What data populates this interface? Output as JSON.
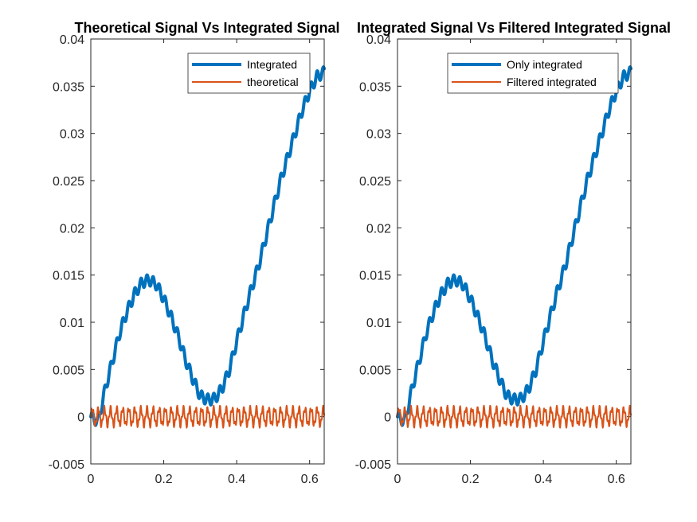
{
  "chart_data": [
    {
      "type": "line",
      "title": "Theoretical Signal Vs Integrated Signal",
      "xlabel": "",
      "ylabel": "",
      "xlim": [
        0,
        0.64
      ],
      "ylim": [
        -0.005,
        0.04
      ],
      "xticks": [
        "0",
        "0.2",
        "0.4",
        "0.6"
      ],
      "yticks": [
        "-0.005",
        "0",
        "0.005",
        "0.01",
        "0.015",
        "0.02",
        "0.025",
        "0.03",
        "0.035",
        "0.04"
      ],
      "legend_position": "top-right",
      "series": [
        {
          "name": "Integrated",
          "color": "#0072BD",
          "x": [
            0,
            0.02,
            0.04,
            0.06,
            0.08,
            0.1,
            0.12,
            0.14,
            0.16,
            0.18,
            0.2,
            0.22,
            0.24,
            0.26,
            0.28,
            0.3,
            0.32,
            0.34,
            0.36,
            0.38,
            0.4,
            0.42,
            0.44,
            0.46,
            0.48,
            0.5,
            0.52,
            0.54,
            0.56,
            0.58,
            0.6,
            0.62,
            0.64
          ],
          "values": [
            0,
            -0.0005,
            0.003,
            0.006,
            0.009,
            0.0112,
            0.013,
            0.0142,
            0.0145,
            0.014,
            0.0125,
            0.0106,
            0.0085,
            0.006,
            0.004,
            0.0022,
            0.0018,
            0.0019,
            0.003,
            0.005,
            0.008,
            0.0108,
            0.0135,
            0.016,
            0.019,
            0.022,
            0.025,
            0.0275,
            0.03,
            0.0325,
            0.0345,
            0.036,
            0.0365
          ]
        },
        {
          "name": "theoretical",
          "color": "#D95319",
          "x": [
            0,
            0.64
          ],
          "values": [
            0,
            0
          ],
          "oscillation_amplitude": 0.001
        }
      ]
    },
    {
      "type": "line",
      "title": "Integrated Signal Vs Filtered Integrated Signal",
      "xlabel": "",
      "ylabel": "",
      "xlim": [
        0,
        0.64
      ],
      "ylim": [
        -0.005,
        0.04
      ],
      "xticks": [
        "0",
        "0.2",
        "0.4",
        "0.6"
      ],
      "yticks": [
        "-0.005",
        "0",
        "0.005",
        "0.01",
        "0.015",
        "0.02",
        "0.025",
        "0.03",
        "0.035",
        "0.04"
      ],
      "legend_position": "top-right",
      "series": [
        {
          "name": "Only integrated",
          "color": "#0072BD",
          "x": [
            0,
            0.02,
            0.04,
            0.06,
            0.08,
            0.1,
            0.12,
            0.14,
            0.16,
            0.18,
            0.2,
            0.22,
            0.24,
            0.26,
            0.28,
            0.3,
            0.32,
            0.34,
            0.36,
            0.38,
            0.4,
            0.42,
            0.44,
            0.46,
            0.48,
            0.5,
            0.52,
            0.54,
            0.56,
            0.58,
            0.6,
            0.62,
            0.64
          ],
          "values": [
            0,
            -0.0005,
            0.003,
            0.006,
            0.009,
            0.0112,
            0.013,
            0.0142,
            0.0145,
            0.014,
            0.0125,
            0.0106,
            0.0085,
            0.006,
            0.004,
            0.0022,
            0.0018,
            0.0019,
            0.003,
            0.005,
            0.008,
            0.0108,
            0.0135,
            0.016,
            0.019,
            0.022,
            0.025,
            0.0275,
            0.03,
            0.0325,
            0.0345,
            0.036,
            0.0365
          ]
        },
        {
          "name": "Filtered integrated",
          "color": "#D95319",
          "x": [
            0,
            0.64
          ],
          "values": [
            0,
            0
          ],
          "oscillation_amplitude": 0.001
        }
      ]
    }
  ]
}
